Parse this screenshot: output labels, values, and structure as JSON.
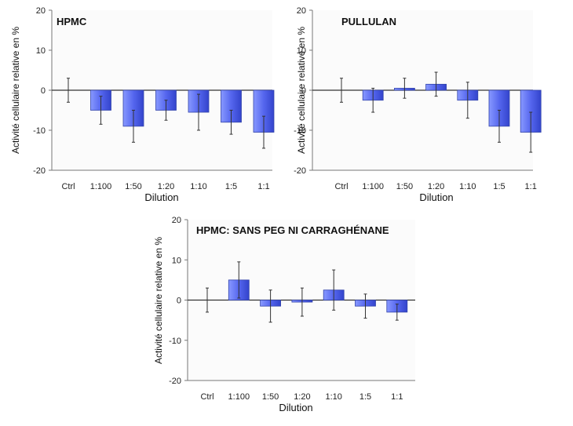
{
  "chart_data": [
    {
      "type": "bar",
      "title": "HPMC",
      "xlabel": "Dilution",
      "ylabel": "Activité cellulaire relative en %",
      "ylim": [
        -20,
        20
      ],
      "yticks": [
        20,
        10,
        0,
        -10,
        -20
      ],
      "categories": [
        "Ctrl",
        "1:100",
        "1:50",
        "1:20",
        "1:10",
        "1:5",
        "1:1"
      ],
      "values": [
        0,
        -5,
        -9,
        -5,
        -5.5,
        -8,
        -10.5
      ],
      "errors": [
        3,
        3.5,
        4,
        2.5,
        4.5,
        3,
        4
      ],
      "grid": false,
      "bar_color": "#5566ee"
    },
    {
      "type": "bar",
      "title": "PULLULAN",
      "xlabel": "Dilution",
      "ylabel": "Activité cellulaire relative en %",
      "ylim": [
        -20,
        20
      ],
      "yticks": [
        20,
        10,
        0,
        -10,
        -20
      ],
      "categories": [
        "Ctrl",
        "1:100",
        "1:50",
        "1:20",
        "1:10",
        "1:5",
        "1:1"
      ],
      "values": [
        0,
        -2.5,
        0.5,
        1.5,
        -2.5,
        -9,
        -10.5
      ],
      "errors": [
        3,
        3,
        2.5,
        3,
        4.5,
        4,
        5
      ],
      "grid": false,
      "bar_color": "#5566ee"
    },
    {
      "type": "bar",
      "title": "HPMC: SANS PEG NI CARRAGHÉNANE",
      "xlabel": "Dilution",
      "ylabel": "Activité cellulaire relative en %",
      "ylim": [
        -20,
        20
      ],
      "yticks": [
        20,
        10,
        0,
        -10,
        -20
      ],
      "categories": [
        "Ctrl",
        "1:100",
        "1:50",
        "1:20",
        "1:10",
        "1:5",
        "1:1"
      ],
      "values": [
        0,
        5,
        -1.5,
        -0.5,
        2.5,
        -1.5,
        -3
      ],
      "errors": [
        3,
        4.5,
        4,
        3.5,
        5,
        3,
        2
      ],
      "grid": false,
      "bar_color": "#5566ee"
    }
  ]
}
